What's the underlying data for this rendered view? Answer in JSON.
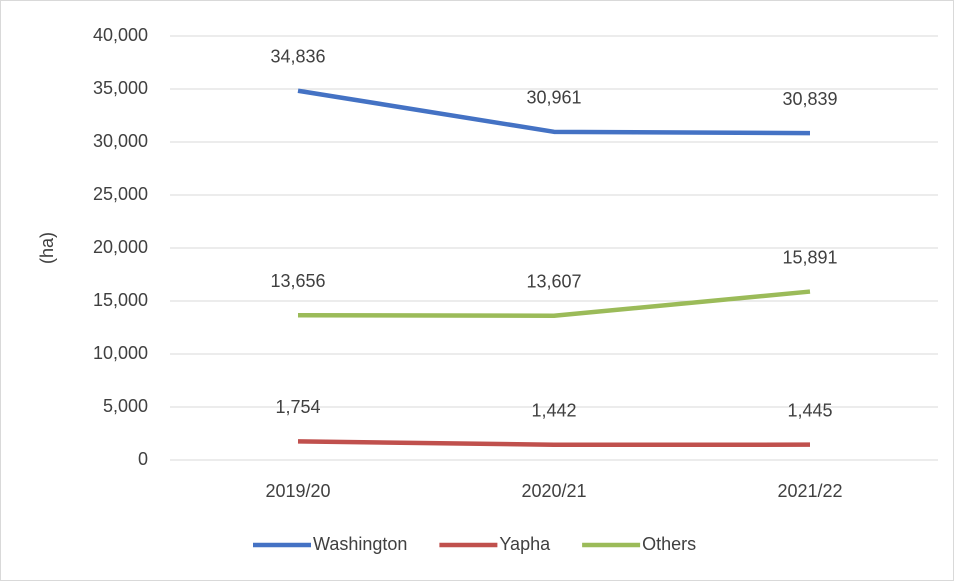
{
  "chart_data": {
    "type": "line",
    "y_label": "(ha)",
    "categories": [
      "2019/20",
      "2020/21",
      "2021/22"
    ],
    "series": [
      {
        "name": "Washington",
        "color": "#4472c4",
        "values": [
          34836,
          30961,
          30839
        ],
        "value_labels": [
          "34,836",
          "30,961",
          "30,839"
        ]
      },
      {
        "name": "Yapha",
        "color": "#c0504d",
        "values": [
          1754,
          1442,
          1445
        ],
        "value_labels": [
          "1,754",
          "1,442",
          "1,445"
        ]
      },
      {
        "name": "Others",
        "color": "#9bbb59",
        "values": [
          13656,
          13607,
          15891
        ],
        "value_labels": [
          "13,656",
          "13,607",
          "15,891"
        ]
      }
    ],
    "ylim": [
      0,
      40000
    ],
    "yticks": [
      0,
      {
        "value": 5000,
        "label": "5,000"
      },
      {
        "value": 10000,
        "label": "10,000"
      },
      {
        "value": 15000,
        "label": "15,000"
      },
      {
        "value": 20000,
        "label": "20,000"
      },
      {
        "value": 25000,
        "label": "25,000"
      },
      {
        "value": 30000,
        "label": "30,000"
      },
      {
        "value": 35000,
        "label": "35,000"
      },
      {
        "value": 40000,
        "label": "40,000"
      }
    ],
    "grid": true,
    "legend": "bottom"
  }
}
